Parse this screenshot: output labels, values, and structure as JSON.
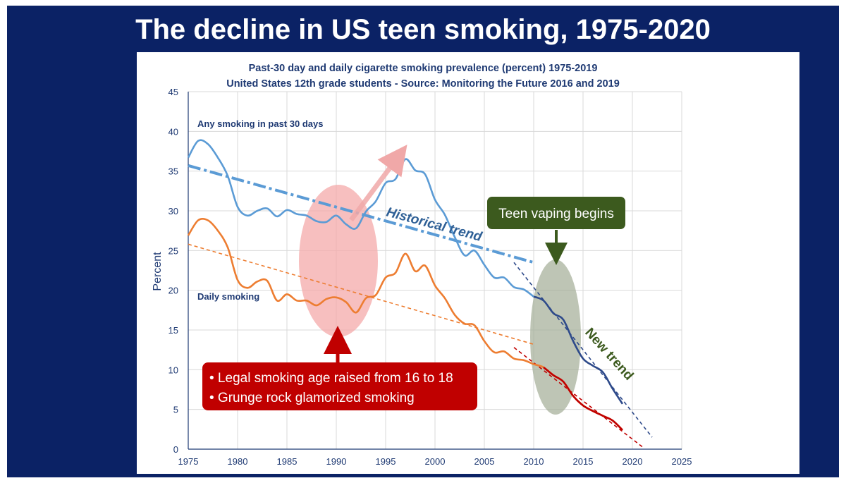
{
  "header": {
    "title": "The decline in US teen smoking, 1975-2020"
  },
  "chart_data": {
    "type": "line",
    "title": "Past-30 day and daily cigarette smoking prevalence (percent) 1975-2019",
    "subtitle": "United States 12th grade students - Source: Monitoring the Future 2016 and 2019",
    "xlabel": "",
    "ylabel": "Percent",
    "xlim": [
      1975,
      2025
    ],
    "ylim": [
      0,
      45
    ],
    "xticks": [
      1975,
      1980,
      1985,
      1990,
      1995,
      2000,
      2005,
      2010,
      2015,
      2020,
      2025
    ],
    "yticks": [
      0,
      5,
      10,
      15,
      20,
      25,
      30,
      35,
      40,
      45
    ],
    "grid": true,
    "series": [
      {
        "name": "Any smoking in past 30 days",
        "color": "#5b9bd5",
        "x": [
          1975,
          1976,
          1977,
          1978,
          1979,
          1980,
          1981,
          1982,
          1983,
          1984,
          1985,
          1986,
          1987,
          1988,
          1989,
          1990,
          1991,
          1992,
          1993,
          1994,
          1995,
          1996,
          1997,
          1998,
          1999,
          2000,
          2001,
          2002,
          2003,
          2004,
          2005,
          2006,
          2007,
          2008,
          2009,
          2010,
          2011,
          2012,
          2013,
          2014,
          2015,
          2016,
          2017,
          2018,
          2019
        ],
        "values": [
          36.7,
          38.8,
          38.4,
          36.7,
          34.4,
          30.5,
          29.4,
          30.0,
          30.3,
          29.3,
          30.1,
          29.6,
          29.4,
          28.7,
          28.6,
          29.4,
          28.3,
          27.8,
          29.9,
          31.2,
          33.5,
          34.0,
          36.5,
          35.1,
          34.6,
          31.4,
          29.5,
          26.7,
          24.4,
          25.0,
          23.2,
          21.6,
          21.6,
          20.4,
          20.1,
          19.2,
          18.7,
          17.1,
          16.3,
          13.6,
          11.4,
          10.5,
          9.7,
          7.6,
          5.7
        ]
      },
      {
        "name": "Daily smoking",
        "color": "#ed7d31",
        "x": [
          1975,
          1976,
          1977,
          1978,
          1979,
          1980,
          1981,
          1982,
          1983,
          1984,
          1985,
          1986,
          1987,
          1988,
          1989,
          1990,
          1991,
          1992,
          1993,
          1994,
          1995,
          1996,
          1997,
          1998,
          1999,
          2000,
          2001,
          2002,
          2003,
          2004,
          2005,
          2006,
          2007,
          2008,
          2009,
          2010,
          2011,
          2012,
          2013,
          2014,
          2015,
          2016,
          2017,
          2018,
          2019
        ],
        "values": [
          26.9,
          28.8,
          28.8,
          27.5,
          25.4,
          21.3,
          20.3,
          21.1,
          21.2,
          18.7,
          19.5,
          18.7,
          18.7,
          18.1,
          18.9,
          19.1,
          18.5,
          17.2,
          19.0,
          19.4,
          21.6,
          22.2,
          24.6,
          22.4,
          23.1,
          20.6,
          19.0,
          16.9,
          15.8,
          15.6,
          13.6,
          12.2,
          12.3,
          11.4,
          11.2,
          10.7,
          10.3,
          9.3,
          8.5,
          6.7,
          5.5,
          4.8,
          4.2,
          3.6,
          2.4
        ]
      },
      {
        "name": "",
        "color": "#c00000",
        "x": [
          2011,
          2012,
          2013,
          2014,
          2015,
          2016,
          2017,
          2018,
          2019
        ],
        "values": [
          10.3,
          9.3,
          8.5,
          6.7,
          5.5,
          4.8,
          4.2,
          3.6,
          2.4
        ]
      }
    ],
    "trendlines": [
      {
        "name": "Historical trend",
        "color": "#5b9bd5",
        "x": [
          1975,
          2010
        ],
        "values": [
          35.7,
          23.5
        ]
      },
      {
        "name": "",
        "color": "#ed7d31",
        "x": [
          1975,
          2010
        ],
        "values": [
          25.8,
          13.2
        ]
      },
      {
        "name": "New trend",
        "color": "#2e4a8a",
        "x": [
          2008,
          2022
        ],
        "values": [
          23.5,
          1.5
        ]
      },
      {
        "name": "",
        "color": "#c00000",
        "x": [
          2008,
          2021
        ],
        "values": [
          12.8,
          0.3
        ]
      }
    ],
    "annotations": {
      "any_label": "Any smoking in past 30 days",
      "daily_label": "Daily smoking",
      "historical_trend": "Historical trend",
      "new_trend": "New trend",
      "vaping_callout": "Teen vaping begins",
      "red_callout_line1": "• Legal smoking age raised from 16 to 18",
      "red_callout_line2": "• Grunge rock glamorized smoking"
    },
    "colors": {
      "navy": "#0b2265",
      "red_box": "#c00000",
      "green_box": "#3c5a1e",
      "pink_ellipse": "#f4b3b3",
      "gray_ellipse": "#b5bfa8"
    }
  }
}
